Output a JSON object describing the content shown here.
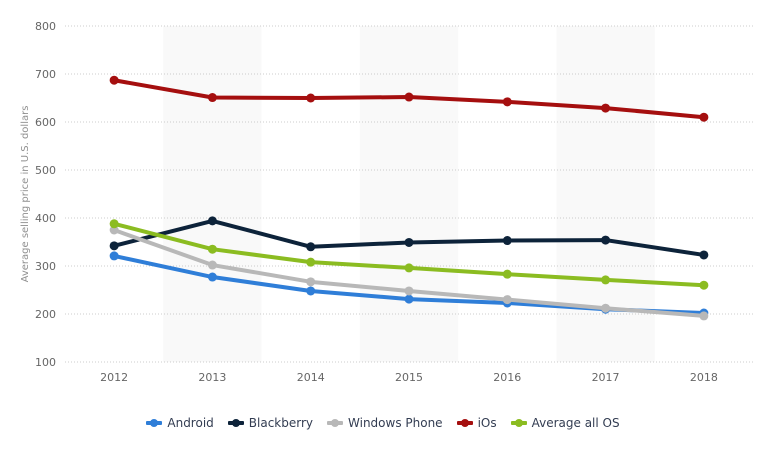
{
  "chart_data": {
    "type": "line",
    "title": "",
    "xlabel": "",
    "ylabel": "Average selling price in U.S. dollars",
    "x": [
      "2012",
      "2013",
      "2014",
      "2015",
      "2016",
      "2017",
      "2018"
    ],
    "yticks": [
      "100",
      "200",
      "300",
      "400",
      "500",
      "600",
      "700",
      "800"
    ],
    "ylim": [
      100,
      800
    ],
    "grid": true,
    "legend_position": "bottom-center",
    "series": [
      {
        "name": "Android",
        "color": "#2f7ed8",
        "values": [
          321,
          277,
          248,
          231,
          223,
          210,
          202
        ]
      },
      {
        "name": "Blackberry",
        "color": "#0d233a",
        "values": [
          342,
          394,
          340,
          349,
          353,
          354,
          323
        ]
      },
      {
        "name": "Windows Phone",
        "color": "#b8b8b8",
        "values": [
          375,
          302,
          267,
          248,
          230,
          212,
          196
        ]
      },
      {
        "name": "iOs",
        "color": "#a50f0f",
        "values": [
          687,
          651,
          650,
          652,
          642,
          629,
          610
        ]
      },
      {
        "name": "Average all OS",
        "color": "#8bbc21",
        "values": [
          388,
          335,
          308,
          296,
          283,
          271,
          260
        ]
      }
    ]
  }
}
